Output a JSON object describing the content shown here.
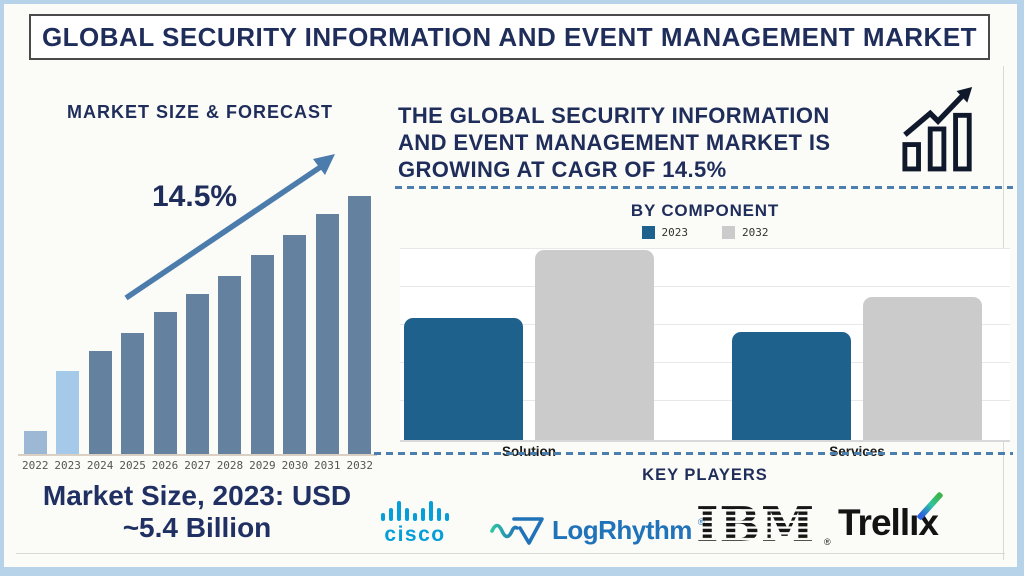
{
  "title": "GLOBAL SECURITY INFORMATION AND EVENT MANAGEMENT MARKET",
  "left": {
    "heading": "MARKET SIZE & FORECAST",
    "growth_label": "14.5%",
    "caption": "Market Size, 2023: USD\n~5.4 Billion"
  },
  "right": {
    "headline": "THE GLOBAL SECURITY INFORMATION\nAND EVENT MANAGEMENT MARKET IS\nGROWING AT CAGR OF 14.5%",
    "by_component_title": "BY COMPONENT",
    "key_players_title": "KEY PLAYERS",
    "players": [
      {
        "name": "Cisco",
        "logo_text": "cisco",
        "color": "#049FD9"
      },
      {
        "name": "LogRhythm",
        "logo_text": "LogRhythm",
        "reg": "®",
        "color": "#2173B9"
      },
      {
        "name": "IBM",
        "logo_text": "IBM",
        "reg": "®",
        "color": "#161616"
      },
      {
        "name": "Trellix",
        "logo_text": "Trellıx",
        "color": "#131313",
        "slash_gradient": [
          "#2B63DE",
          "#3CB54A"
        ]
      }
    ]
  },
  "colors": {
    "navy_text": "#1F2D5B",
    "frame_border": "#B7D3E9",
    "dashed_separator": "#4D7FAE",
    "trend_arrow": "#4C7CAC",
    "left_axis": "#D9CFC3"
  },
  "chart_data": [
    {
      "type": "bar",
      "title": "MARKET SIZE & FORECAST",
      "categories": [
        "2022",
        "2023",
        "2024",
        "2025",
        "2026",
        "2027",
        "2028",
        "2029",
        "2030",
        "2031",
        "2032"
      ],
      "values": [
        9,
        32,
        40,
        47,
        55,
        62,
        69,
        77,
        85,
        93,
        100
      ],
      "units": "relative bar height, % of 2032 (no value axis shown)",
      "bar_colors": {
        "2022": "#9DB8D5",
        "2023": "#A5C9E9",
        "default": "#64829F"
      },
      "annotations": [
        "14.5% CAGR growth arrow",
        "Market Size, 2023: USD ~5.4 Billion"
      ],
      "xlabel": "",
      "ylabel": "",
      "grid": false
    },
    {
      "type": "bar",
      "title": "BY COMPONENT",
      "categories": [
        "Solution",
        "Services"
      ],
      "series": [
        {
          "name": "2023",
          "color": "#1F618D",
          "values": [
            64,
            57
          ]
        },
        {
          "name": "2032",
          "color": "#CBCBCB",
          "values": [
            100,
            75
          ]
        }
      ],
      "units": "relative bar height, % of Solution 2032 (no value axis shown)",
      "legend_position": "top",
      "xlabel": "",
      "ylabel": "",
      "grid": true
    }
  ]
}
